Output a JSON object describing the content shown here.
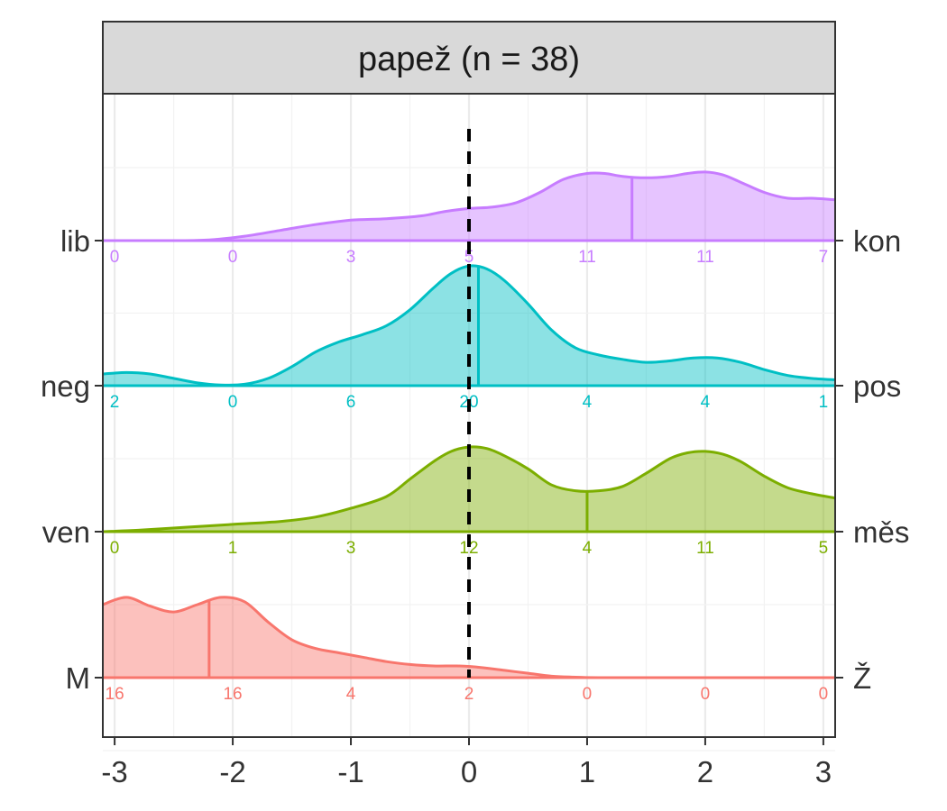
{
  "chart_data": {
    "type": "ridgeline",
    "title": "papež (n = 38)",
    "xlabel": "",
    "ylabel": "",
    "xlim": [
      -3.1,
      3.1
    ],
    "x_ticks": [
      -3,
      -2,
      -1,
      0,
      1,
      2,
      3
    ],
    "x_tick_labels": [
      "-3",
      "-2",
      "-1",
      "0",
      "1",
      "2",
      "3"
    ],
    "reference_line": 0,
    "grid": true,
    "series": [
      {
        "left_label": "M",
        "right_label": "Ž",
        "color": "#F8766D",
        "mean": -2.2,
        "counts": [
          16,
          16,
          4,
          2,
          0,
          0,
          0
        ],
        "density": [
          [
            -3.1,
            0.5
          ],
          [
            -2.9,
            0.55
          ],
          [
            -2.7,
            0.49
          ],
          [
            -2.5,
            0.45
          ],
          [
            -2.3,
            0.5
          ],
          [
            -2.1,
            0.55
          ],
          [
            -1.9,
            0.52
          ],
          [
            -1.7,
            0.38
          ],
          [
            -1.5,
            0.26
          ],
          [
            -1.3,
            0.2
          ],
          [
            -1.1,
            0.17
          ],
          [
            -0.9,
            0.14
          ],
          [
            -0.7,
            0.11
          ],
          [
            -0.5,
            0.09
          ],
          [
            -0.3,
            0.08
          ],
          [
            -0.1,
            0.08
          ],
          [
            0.1,
            0.07
          ],
          [
            0.3,
            0.05
          ],
          [
            0.5,
            0.03
          ],
          [
            0.7,
            0.01
          ],
          [
            0.9,
            0.003
          ],
          [
            1.1,
            0
          ],
          [
            1.5,
            0
          ],
          [
            2.0,
            0
          ],
          [
            2.5,
            0
          ],
          [
            3.1,
            0
          ]
        ]
      },
      {
        "left_label": "ven",
        "right_label": "měs",
        "color": "#7CAE00",
        "mean": 1.0,
        "counts": [
          0,
          1,
          3,
          12,
          4,
          11,
          5
        ],
        "density": [
          [
            -3.1,
            0
          ],
          [
            -2.8,
            0.01
          ],
          [
            -2.4,
            0.03
          ],
          [
            -2.0,
            0.05
          ],
          [
            -1.6,
            0.07
          ],
          [
            -1.3,
            0.1
          ],
          [
            -1.0,
            0.16
          ],
          [
            -0.7,
            0.24
          ],
          [
            -0.5,
            0.36
          ],
          [
            -0.3,
            0.48
          ],
          [
            -0.15,
            0.55
          ],
          [
            0.0,
            0.58
          ],
          [
            0.15,
            0.57
          ],
          [
            0.3,
            0.52
          ],
          [
            0.5,
            0.43
          ],
          [
            0.7,
            0.32
          ],
          [
            0.9,
            0.28
          ],
          [
            1.1,
            0.28
          ],
          [
            1.3,
            0.31
          ],
          [
            1.5,
            0.4
          ],
          [
            1.7,
            0.5
          ],
          [
            1.85,
            0.54
          ],
          [
            2.0,
            0.55
          ],
          [
            2.15,
            0.53
          ],
          [
            2.3,
            0.48
          ],
          [
            2.5,
            0.38
          ],
          [
            2.7,
            0.3
          ],
          [
            2.9,
            0.26
          ],
          [
            3.1,
            0.23
          ]
        ]
      },
      {
        "left_label": "neg",
        "right_label": "pos",
        "color": "#00BFC4",
        "mean": 0.08,
        "counts": [
          2,
          0,
          6,
          20,
          4,
          4,
          1
        ],
        "density": [
          [
            -3.1,
            0.08
          ],
          [
            -2.9,
            0.09
          ],
          [
            -2.7,
            0.08
          ],
          [
            -2.5,
            0.05
          ],
          [
            -2.3,
            0.02
          ],
          [
            -2.1,
            0.005
          ],
          [
            -1.9,
            0.01
          ],
          [
            -1.7,
            0.05
          ],
          [
            -1.5,
            0.13
          ],
          [
            -1.3,
            0.23
          ],
          [
            -1.1,
            0.3
          ],
          [
            -0.9,
            0.35
          ],
          [
            -0.7,
            0.41
          ],
          [
            -0.5,
            0.52
          ],
          [
            -0.3,
            0.67
          ],
          [
            -0.15,
            0.77
          ],
          [
            0.0,
            0.82
          ],
          [
            0.15,
            0.8
          ],
          [
            0.3,
            0.72
          ],
          [
            0.5,
            0.56
          ],
          [
            0.7,
            0.38
          ],
          [
            0.9,
            0.26
          ],
          [
            1.1,
            0.21
          ],
          [
            1.3,
            0.18
          ],
          [
            1.5,
            0.16
          ],
          [
            1.7,
            0.17
          ],
          [
            1.9,
            0.19
          ],
          [
            2.1,
            0.19
          ],
          [
            2.3,
            0.16
          ],
          [
            2.5,
            0.11
          ],
          [
            2.7,
            0.07
          ],
          [
            2.9,
            0.05
          ],
          [
            3.1,
            0.04
          ]
        ]
      },
      {
        "left_label": "lib",
        "right_label": "kon",
        "color": "#C77CFF",
        "mean": 1.38,
        "counts": [
          0,
          0,
          3,
          5,
          11,
          11,
          7
        ],
        "density": [
          [
            -3.1,
            0
          ],
          [
            -2.5,
            0
          ],
          [
            -2.2,
            0.005
          ],
          [
            -1.9,
            0.03
          ],
          [
            -1.6,
            0.07
          ],
          [
            -1.3,
            0.11
          ],
          [
            -1.0,
            0.14
          ],
          [
            -0.7,
            0.15
          ],
          [
            -0.4,
            0.17
          ],
          [
            -0.2,
            0.2
          ],
          [
            0.0,
            0.22
          ],
          [
            0.2,
            0.23
          ],
          [
            0.4,
            0.26
          ],
          [
            0.6,
            0.33
          ],
          [
            0.8,
            0.42
          ],
          [
            1.0,
            0.46
          ],
          [
            1.15,
            0.46
          ],
          [
            1.3,
            0.44
          ],
          [
            1.5,
            0.43
          ],
          [
            1.7,
            0.44
          ],
          [
            1.85,
            0.46
          ],
          [
            2.0,
            0.47
          ],
          [
            2.15,
            0.45
          ],
          [
            2.3,
            0.4
          ],
          [
            2.5,
            0.33
          ],
          [
            2.7,
            0.29
          ],
          [
            2.9,
            0.29
          ],
          [
            3.1,
            0.28
          ]
        ]
      }
    ]
  }
}
